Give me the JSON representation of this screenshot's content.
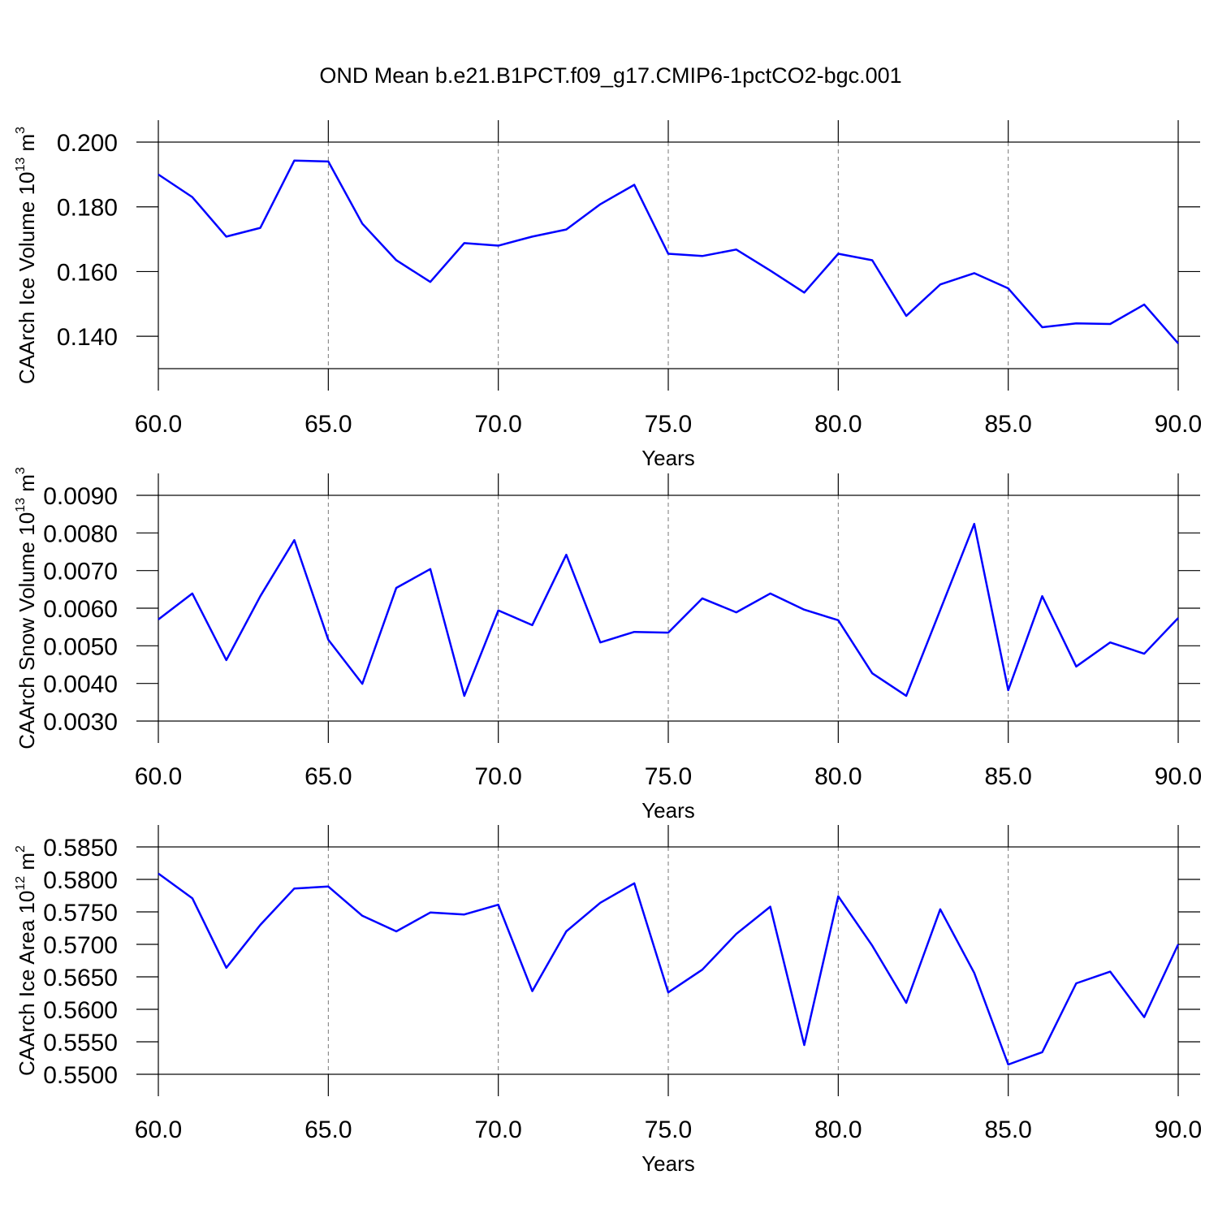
{
  "title": "OND Mean b.e21.B1PCT.f09_g17.CMIP6-1pctCO2-bgc.001",
  "chart_data": [
    {
      "type": "line",
      "ylabel": [
        "CAArch Ice Volume 10",
        "13",
        " m",
        "3"
      ],
      "xlabel": "Years",
      "x": [
        60,
        61,
        62,
        63,
        64,
        65,
        66,
        67,
        68,
        69,
        70,
        71,
        72,
        73,
        74,
        75,
        76,
        77,
        78,
        79,
        80,
        81,
        82,
        83,
        84,
        85,
        86,
        87,
        88,
        89,
        90
      ],
      "series": [
        {
          "color": "#0000ff",
          "values": [
            0.19,
            0.183,
            0.1708,
            0.1735,
            0.1943,
            0.194,
            0.1748,
            0.1635,
            0.1568,
            0.1688,
            0.168,
            0.1708,
            0.173,
            0.1808,
            0.1868,
            0.1655,
            0.1648,
            0.1668,
            0.1603,
            0.1535,
            0.1655,
            0.1635,
            0.1463,
            0.156,
            0.1595,
            0.1548,
            0.1428,
            0.144,
            0.1438,
            0.1498,
            0.1378
          ]
        }
      ],
      "xlim": [
        60,
        90
      ],
      "xticks": [
        {
          "value": 60,
          "label": "60.0"
        },
        {
          "value": 65,
          "label": "65.0"
        },
        {
          "value": 70,
          "label": "70.0"
        },
        {
          "value": 75,
          "label": "75.0"
        },
        {
          "value": 80,
          "label": "80.0"
        },
        {
          "value": 85,
          "label": "85.0"
        },
        {
          "value": 90,
          "label": "90.0"
        }
      ],
      "ylim": [
        0.13,
        0.2
      ],
      "yticks": [
        {
          "value": 0.14,
          "label": "0.140"
        },
        {
          "value": 0.16,
          "label": "0.160"
        },
        {
          "value": 0.18,
          "label": "0.180"
        },
        {
          "value": 0.2,
          "label": "0.200"
        }
      ],
      "grid": "x-dashed"
    },
    {
      "type": "line",
      "ylabel": [
        "CAArch Snow Volume 10",
        "13",
        " m",
        "3"
      ],
      "xlabel": "Years",
      "x": [
        60,
        61,
        62,
        63,
        64,
        65,
        66,
        67,
        68,
        69,
        70,
        71,
        72,
        73,
        74,
        75,
        76,
        77,
        78,
        79,
        80,
        81,
        82,
        83,
        84,
        85,
        86,
        87,
        88,
        89,
        90
      ],
      "series": [
        {
          "color": "#0000ff",
          "values": [
            0.0057,
            0.00639,
            0.00462,
            0.00632,
            0.00781,
            0.00516,
            0.00399,
            0.00654,
            0.00704,
            0.00367,
            0.00594,
            0.00555,
            0.00742,
            0.00509,
            0.00537,
            0.00535,
            0.00626,
            0.00589,
            0.00639,
            0.00596,
            0.00568,
            0.00427,
            0.00367,
            0.00595,
            0.00824,
            0.00382,
            0.00632,
            0.00445,
            0.00509,
            0.00479,
            0.00574
          ]
        }
      ],
      "xlim": [
        60,
        90
      ],
      "xticks": [
        {
          "value": 60,
          "label": "60.0"
        },
        {
          "value": 65,
          "label": "65.0"
        },
        {
          "value": 70,
          "label": "70.0"
        },
        {
          "value": 75,
          "label": "75.0"
        },
        {
          "value": 80,
          "label": "80.0"
        },
        {
          "value": 85,
          "label": "85.0"
        },
        {
          "value": 90,
          "label": "90.0"
        }
      ],
      "ylim": [
        0.003,
        0.009
      ],
      "yticks": [
        {
          "value": 0.003,
          "label": "0.0030"
        },
        {
          "value": 0.004,
          "label": "0.0040"
        },
        {
          "value": 0.005,
          "label": "0.0050"
        },
        {
          "value": 0.006,
          "label": "0.0060"
        },
        {
          "value": 0.007,
          "label": "0.0070"
        },
        {
          "value": 0.008,
          "label": "0.0080"
        },
        {
          "value": 0.009,
          "label": "0.0090"
        }
      ],
      "grid": "x-dashed"
    },
    {
      "type": "line",
      "ylabel": [
        "CAArch Ice Area 10",
        "12",
        " m",
        "2"
      ],
      "xlabel": "Years",
      "x": [
        60,
        61,
        62,
        63,
        64,
        65,
        66,
        67,
        68,
        69,
        70,
        71,
        72,
        73,
        74,
        75,
        76,
        77,
        78,
        79,
        80,
        81,
        82,
        83,
        84,
        85,
        86,
        87,
        88,
        89,
        90
      ],
      "series": [
        {
          "color": "#0000ff",
          "values": [
            0.5809,
            0.5771,
            0.5664,
            0.573,
            0.5786,
            0.5789,
            0.5744,
            0.572,
            0.5749,
            0.5746,
            0.5761,
            0.5628,
            0.572,
            0.5764,
            0.5794,
            0.5626,
            0.5661,
            0.5716,
            0.5758,
            0.5545,
            0.5774,
            0.5698,
            0.561,
            0.5754,
            0.5656,
            0.5515,
            0.5534,
            0.564,
            0.5658,
            0.5588,
            0.57
          ]
        }
      ],
      "xlim": [
        60,
        90
      ],
      "xticks": [
        {
          "value": 60,
          "label": "60.0"
        },
        {
          "value": 65,
          "label": "65.0"
        },
        {
          "value": 70,
          "label": "70.0"
        },
        {
          "value": 75,
          "label": "75.0"
        },
        {
          "value": 80,
          "label": "80.0"
        },
        {
          "value": 85,
          "label": "85.0"
        },
        {
          "value": 90,
          "label": "90.0"
        }
      ],
      "ylim": [
        0.55,
        0.585
      ],
      "yticks": [
        {
          "value": 0.55,
          "label": "0.5500"
        },
        {
          "value": 0.555,
          "label": "0.5550"
        },
        {
          "value": 0.56,
          "label": "0.5600"
        },
        {
          "value": 0.565,
          "label": "0.5650"
        },
        {
          "value": 0.57,
          "label": "0.5700"
        },
        {
          "value": 0.575,
          "label": "0.5750"
        },
        {
          "value": 0.58,
          "label": "0.5800"
        },
        {
          "value": 0.585,
          "label": "0.5850"
        }
      ],
      "grid": "x-dashed"
    }
  ]
}
